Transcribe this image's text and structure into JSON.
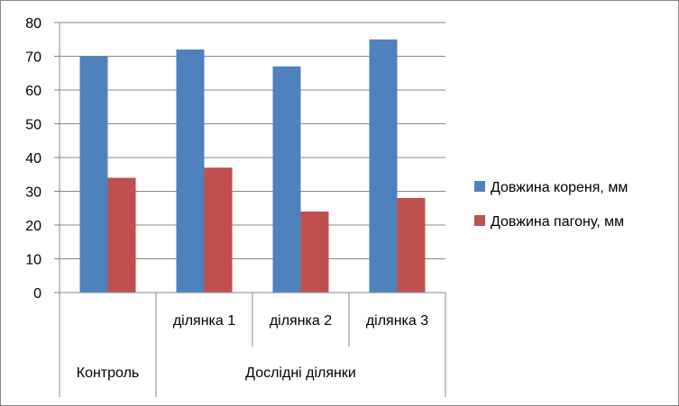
{
  "chart_data": {
    "type": "bar",
    "groups": [
      {
        "label": "",
        "categories": [
          "Контроль"
        ]
      },
      {
        "label": "Дослідні ділянки",
        "categories": [
          "ділянка 1",
          "ділянка 2",
          "ділянка 3"
        ]
      }
    ],
    "category_labels": [
      "Контроль",
      "ділянка 1",
      "ділянка 2",
      "ділянка 3"
    ],
    "series": [
      {
        "name": "Довжина кореня, мм",
        "color": "#4f81bd",
        "values": [
          70,
          72,
          67,
          75
        ]
      },
      {
        "name": "Довжина пагону, мм",
        "color": "#c0504d",
        "values": [
          34,
          37,
          24,
          28
        ]
      }
    ],
    "ylim": [
      0,
      80
    ],
    "yticks": [
      0,
      10,
      20,
      30,
      40,
      50,
      60,
      70,
      80
    ],
    "grid": true,
    "legend": "right"
  }
}
